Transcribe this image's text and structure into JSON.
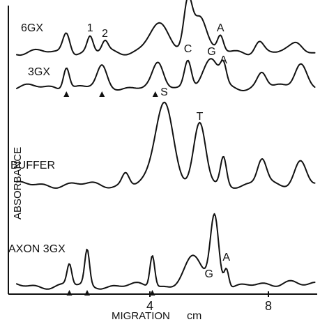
{
  "chart_data": {
    "type": "line",
    "xlabel": "MIGRATION",
    "xunit": "cm",
    "ylabel": "ABSORBANCE",
    "xlim": [
      0,
      9.9
    ],
    "xticks": [
      4,
      8
    ],
    "grid": false,
    "legend": "none",
    "series": [
      {
        "name": "6GX",
        "baseline": 0,
        "peaks": [
          {
            "x": 1.3,
            "h": 30,
            "w": 0.12,
            "label": ""
          },
          {
            "x": 2.1,
            "h": 22,
            "w": 0.1,
            "label": "1"
          },
          {
            "x": 2.6,
            "h": 14,
            "w": 0.1,
            "label": "2"
          },
          {
            "x": 4.4,
            "h": 38,
            "w": 0.35,
            "label": ""
          },
          {
            "x": 5.4,
            "h": 70,
            "w": 0.14,
            "label": "C"
          },
          {
            "x": 5.8,
            "h": 55,
            "w": 0.22,
            "label": ""
          },
          {
            "x": 6.5,
            "h": 22,
            "w": 0.1,
            "label": "A"
          },
          {
            "x": 7.8,
            "h": 17,
            "w": 0.15,
            "label": ""
          },
          {
            "x": 9.1,
            "h": 14,
            "w": 0.2,
            "label": ""
          }
        ]
      },
      {
        "name": "3GX",
        "baseline": 0,
        "peaks": [
          {
            "x": 1.3,
            "h": 32,
            "w": 0.1,
            "label": ""
          },
          {
            "x": 2.5,
            "h": 28,
            "w": 0.16,
            "label": ""
          },
          {
            "x": 4.4,
            "h": 32,
            "w": 0.18,
            "label": ""
          },
          {
            "x": 5.4,
            "h": 42,
            "w": 0.12,
            "label": "C"
          },
          {
            "x": 6.2,
            "h": 38,
            "w": 0.25,
            "label": "G"
          },
          {
            "x": 6.6,
            "h": 26,
            "w": 0.1,
            "label": "A"
          },
          {
            "x": 7.9,
            "h": 20,
            "w": 0.15,
            "label": ""
          },
          {
            "x": 9.2,
            "h": 36,
            "w": 0.2,
            "label": ""
          }
        ],
        "markers": [
          1.3,
          2.5,
          4.3
        ]
      },
      {
        "name": "BUFFER",
        "baseline": 0,
        "peaks": [
          {
            "x": 3.3,
            "h": 18,
            "w": 0.12,
            "label": ""
          },
          {
            "x": 4.6,
            "h": 120,
            "w": 0.3,
            "label": "S"
          },
          {
            "x": 5.8,
            "h": 85,
            "w": 0.2,
            "label": "T"
          },
          {
            "x": 6.6,
            "h": 40,
            "w": 0.1,
            "label": ""
          },
          {
            "x": 7.9,
            "h": 36,
            "w": 0.15,
            "label": ""
          },
          {
            "x": 9.2,
            "h": 35,
            "w": 0.2,
            "label": ""
          }
        ]
      },
      {
        "name": "AXON 3GX",
        "baseline": 0,
        "peaks": [
          {
            "x": 1.4,
            "h": 30,
            "w": 0.08,
            "label": ""
          },
          {
            "x": 2.0,
            "h": 50,
            "w": 0.08,
            "label": ""
          },
          {
            "x": 4.2,
            "h": 46,
            "w": 0.08,
            "label": ""
          },
          {
            "x": 5.6,
            "h": 40,
            "w": 0.3,
            "label": ""
          },
          {
            "x": 6.3,
            "h": 100,
            "w": 0.14,
            "label": "G"
          },
          {
            "x": 6.7,
            "h": 28,
            "w": 0.08,
            "label": "A"
          },
          {
            "x": 8.8,
            "h": 8,
            "w": 0.3,
            "label": ""
          }
        ],
        "markers": [
          1.4,
          2.0,
          4.2
        ]
      }
    ]
  }
}
